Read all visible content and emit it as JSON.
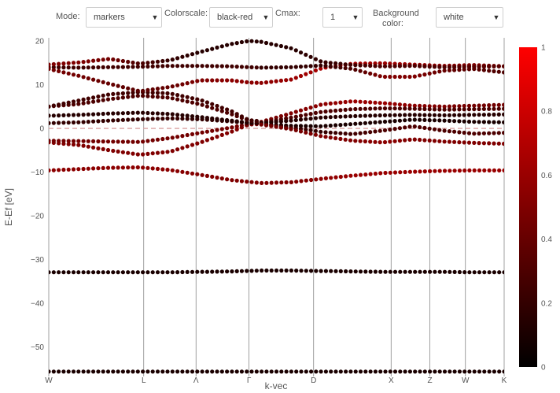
{
  "controls": {
    "mode": {
      "label": "Mode:",
      "value": "markers"
    },
    "colorscale": {
      "label": "Colorscale:",
      "value": "black-red"
    },
    "cmax": {
      "label": "Cmax:",
      "value": "1"
    },
    "background": {
      "label_line1": "Background",
      "label_line2": "color:",
      "value": "white"
    }
  },
  "chart_data": {
    "type": "scatter",
    "xlabel": "k-vec",
    "ylabel": "E-Ef [eV]",
    "ylim": [
      -56,
      20
    ],
    "yticks": [
      20,
      10,
      0,
      -10,
      -20,
      -30,
      -40,
      -50
    ],
    "kpath": [
      "W",
      "L",
      "Λ",
      "Γ",
      "D",
      "X",
      "Z",
      "W",
      "K"
    ],
    "kpath_positions": [
      0,
      1.47,
      2.28,
      3.1,
      4.1,
      5.3,
      5.9,
      6.45,
      7.05
    ],
    "fermi_level": 0,
    "colorbar": {
      "min": 0,
      "max": 1,
      "ticks": [
        0,
        0.2,
        0.4,
        0.6,
        0.8,
        1
      ],
      "colors": [
        "#000000",
        "#ff0000"
      ]
    },
    "grid": false,
    "series": [
      {
        "x": [
          0,
          0.47,
          0.94,
          1.41,
          1.88,
          2.35,
          2.82,
          3.29,
          3.76,
          4.23,
          4.7,
          5.17,
          5.64,
          6.11,
          6.58,
          7.05
        ],
        "y": [
          -55.6,
          -55.6,
          -55.6,
          -55.6,
          -55.6,
          -55.6,
          -55.6,
          -55.6,
          -55.6,
          -55.6,
          -55.6,
          -55.6,
          -55.6,
          -55.6,
          -55.6,
          -55.6
        ],
        "c": [
          0.1,
          0.1,
          0.1,
          0.1,
          0.1,
          0.1,
          0.1,
          0.1,
          0.1,
          0.1,
          0.1,
          0.1,
          0.1,
          0.1,
          0.1,
          0.1
        ]
      },
      {
        "x": [
          0,
          0.47,
          0.94,
          1.41,
          1.88,
          2.35,
          2.82,
          3.29,
          3.76,
          4.23,
          4.7,
          5.17,
          5.64,
          6.11,
          6.58,
          7.05
        ],
        "y": [
          -32.9,
          -32.9,
          -32.9,
          -32.9,
          -32.9,
          -32.8,
          -32.7,
          -32.5,
          -32.5,
          -32.6,
          -32.7,
          -32.8,
          -32.8,
          -32.8,
          -32.9,
          -32.9
        ],
        "c": [
          0.1,
          0.1,
          0.1,
          0.1,
          0.1,
          0.1,
          0.1,
          0.1,
          0.1,
          0.1,
          0.1,
          0.1,
          0.1,
          0.1,
          0.1,
          0.1
        ]
      },
      {
        "x": [
          0,
          0.47,
          0.94,
          1.41,
          1.88,
          2.35,
          2.82,
          3.29,
          3.76,
          4.23,
          4.7,
          5.17,
          5.64,
          6.11,
          6.58,
          7.05
        ],
        "y": [
          -9.6,
          -9.3,
          -9.0,
          -8.9,
          -9.5,
          -10.6,
          -11.8,
          -12.5,
          -12.3,
          -11.5,
          -10.8,
          -10.2,
          -9.9,
          -9.7,
          -9.6,
          -9.6
        ],
        "c": [
          0.55,
          0.55,
          0.55,
          0.55,
          0.55,
          0.5,
          0.5,
          0.5,
          0.5,
          0.55,
          0.6,
          0.6,
          0.6,
          0.6,
          0.6,
          0.6
        ]
      },
      {
        "x": [
          0,
          0.47,
          0.94,
          1.41,
          1.88,
          2.35,
          2.82,
          3.1,
          3.29
        ],
        "y": [
          -3.2,
          -3.8,
          -5.0,
          -6.0,
          -5.3,
          -3.2,
          -0.8,
          0.9,
          1.0
        ],
        "c": [
          0.5,
          0.5,
          0.5,
          0.5,
          0.5,
          0.5,
          0.5,
          0.5,
          0.5
        ]
      },
      {
        "x": [
          0,
          0.47,
          0.94,
          1.41,
          1.88,
          2.35,
          2.82,
          3.1,
          3.29
        ],
        "y": [
          -2.8,
          -2.9,
          -3.0,
          -3.1,
          -2.2,
          -1.0,
          0.2,
          1.0,
          1.2
        ],
        "c": [
          0.45,
          0.45,
          0.45,
          0.45,
          0.45,
          0.45,
          0.45,
          0.45,
          0.45
        ]
      },
      {
        "x": [
          0,
          0.47,
          0.94,
          1.41,
          1.88,
          2.35,
          2.82,
          3.1,
          3.29
        ],
        "y": [
          1.2,
          1.4,
          1.8,
          2.1,
          2.3,
          2.1,
          1.6,
          1.2,
          1.2
        ],
        "c": [
          0.2,
          0.2,
          0.2,
          0.2,
          0.2,
          0.2,
          0.2,
          0.2,
          0.2
        ]
      },
      {
        "x": [
          0,
          0.47,
          0.94,
          1.41,
          1.88,
          2.35,
          2.82,
          3.1,
          3.29
        ],
        "y": [
          2.9,
          3.1,
          3.4,
          3.6,
          3.3,
          2.6,
          1.8,
          1.3,
          1.2
        ],
        "c": [
          0.15,
          0.15,
          0.15,
          0.15,
          0.15,
          0.15,
          0.15,
          0.15,
          0.15
        ]
      },
      {
        "x": [
          0,
          0.47,
          0.94,
          1.41,
          1.88,
          2.35,
          2.82,
          3.1,
          3.29
        ],
        "y": [
          5.0,
          5.6,
          6.7,
          7.5,
          7.0,
          5.5,
          3.3,
          1.8,
          1.5
        ],
        "c": [
          0.3,
          0.3,
          0.3,
          0.3,
          0.3,
          0.3,
          0.3,
          0.3,
          0.3
        ]
      },
      {
        "x": [
          0,
          0.47,
          0.94,
          1.41,
          1.88,
          2.35,
          2.82,
          3.1,
          3.29
        ],
        "y": [
          5.0,
          6.4,
          7.8,
          8.3,
          8.0,
          6.5,
          4.0,
          1.9,
          1.6
        ],
        "c": [
          0.25,
          0.25,
          0.25,
          0.25,
          0.25,
          0.25,
          0.25,
          0.25,
          0.25
        ]
      },
      {
        "x": [
          0,
          0.47,
          0.94,
          1.41,
          1.88,
          2.35,
          2.82,
          3.1,
          3.29
        ],
        "y": [
          14.0,
          13.9,
          14.0,
          14.1,
          14.3,
          14.3,
          14.2,
          14.0,
          13.9
        ],
        "c": [
          0.25,
          0.25,
          0.25,
          0.25,
          0.25,
          0.25,
          0.25,
          0.25,
          0.25
        ]
      },
      {
        "x": [
          0,
          0.47,
          0.94,
          1.41,
          1.88,
          2.35,
          2.82,
          3.1,
          3.29
        ],
        "y": [
          14.6,
          15.1,
          15.9,
          14.8,
          15.6,
          17.5,
          19.3,
          20.0,
          19.8
        ],
        "c": [
          0.5,
          0.5,
          0.45,
          0.3,
          0.2,
          0.15,
          0.15,
          0.15,
          0.15
        ]
      },
      {
        "x": [
          0,
          0.47,
          0.94,
          1.41,
          1.88,
          2.35,
          2.82,
          3.1,
          3.29
        ],
        "y": [
          13.6,
          12.0,
          10.2,
          8.5,
          9.5,
          11.0,
          11.0,
          10.5,
          10.4
        ],
        "c": [
          0.45,
          0.45,
          0.4,
          0.35,
          0.4,
          0.5,
          0.55,
          0.55,
          0.55
        ]
      },
      {
        "x": [
          3.29,
          3.76,
          4.23,
          4.7,
          5.17,
          5.64,
          6.11,
          6.58,
          7.05
        ],
        "y": [
          10.4,
          11.2,
          13.8,
          14.8,
          14.9,
          14.6,
          14.3,
          14.5,
          14.2
        ],
        "c": [
          0.55,
          0.6,
          0.65,
          0.65,
          0.6,
          0.6,
          0.55,
          0.5,
          0.5
        ]
      },
      {
        "x": [
          3.29,
          3.76,
          4.23,
          4.7,
          5.17,
          5.64,
          6.11,
          6.58,
          7.05
        ],
        "y": [
          13.9,
          14.0,
          14.4,
          13.6,
          11.8,
          11.8,
          13.2,
          13.6,
          12.8
        ],
        "c": [
          0.2,
          0.2,
          0.2,
          0.3,
          0.5,
          0.5,
          0.4,
          0.35,
          0.3
        ]
      },
      {
        "x": [
          3.29,
          3.76,
          4.23,
          4.7,
          5.17,
          5.64,
          6.11,
          6.58,
          7.05
        ],
        "y": [
          19.8,
          18.3,
          15.2,
          14.5,
          14.2,
          14.3,
          14.0,
          14.1,
          14.2
        ],
        "c": [
          0.15,
          0.15,
          0.2,
          0.25,
          0.3,
          0.3,
          0.3,
          0.35,
          0.35
        ]
      },
      {
        "x": [
          3.29,
          3.76,
          4.23,
          4.7,
          5.17,
          5.64,
          6.11,
          6.58,
          7.05
        ],
        "y": [
          1.5,
          3.5,
          5.5,
          6.2,
          5.8,
          5.2,
          5.0,
          5.2,
          5.4
        ],
        "c": [
          0.45,
          0.5,
          0.55,
          0.6,
          0.6,
          0.55,
          0.5,
          0.45,
          0.45
        ]
      },
      {
        "x": [
          3.29,
          3.76,
          4.23,
          4.7,
          5.17,
          5.64,
          6.11,
          6.58,
          7.05
        ],
        "y": [
          1.3,
          2.5,
          3.8,
          4.4,
          4.6,
          4.5,
          4.3,
          4.4,
          4.5
        ],
        "c": [
          0.3,
          0.3,
          0.3,
          0.3,
          0.3,
          0.3,
          0.3,
          0.3,
          0.3
        ]
      },
      {
        "x": [
          3.29,
          3.76,
          4.23,
          4.7,
          5.17,
          5.64,
          6.11,
          6.58,
          7.05
        ],
        "y": [
          1.2,
          1.8,
          2.5,
          2.8,
          3.0,
          3.1,
          3.0,
          3.1,
          3.2
        ],
        "c": [
          0.15,
          0.15,
          0.15,
          0.15,
          0.15,
          0.15,
          0.15,
          0.15,
          0.15
        ]
      },
      {
        "x": [
          3.29,
          3.76,
          4.23,
          4.7,
          5.17,
          5.64,
          6.11,
          6.58,
          7.05
        ],
        "y": [
          1.0,
          0.6,
          0.5,
          1.0,
          1.5,
          2.0,
          1.8,
          1.5,
          1.4
        ],
        "c": [
          0.1,
          0.1,
          0.1,
          0.1,
          0.1,
          0.1,
          0.1,
          0.1,
          0.1
        ]
      },
      {
        "x": [
          3.29,
          3.76,
          4.23,
          4.7,
          5.17,
          5.64,
          6.11,
          6.58,
          7.05
        ],
        "y": [
          1.0,
          0.2,
          -0.8,
          -1.3,
          -0.5,
          0.5,
          -0.5,
          -1.2,
          -1.0
        ],
        "c": [
          0.2,
          0.2,
          0.2,
          0.25,
          0.3,
          0.3,
          0.3,
          0.3,
          0.3
        ]
      },
      {
        "x": [
          3.29,
          3.76,
          4.23,
          4.7,
          5.17,
          5.64,
          6.11,
          6.58,
          7.05
        ],
        "y": [
          0.9,
          -0.2,
          -1.8,
          -2.8,
          -3.2,
          -2.5,
          -3.0,
          -3.3,
          -3.5
        ],
        "c": [
          0.45,
          0.45,
          0.5,
          0.5,
          0.55,
          0.5,
          0.5,
          0.5,
          0.5
        ]
      }
    ]
  }
}
